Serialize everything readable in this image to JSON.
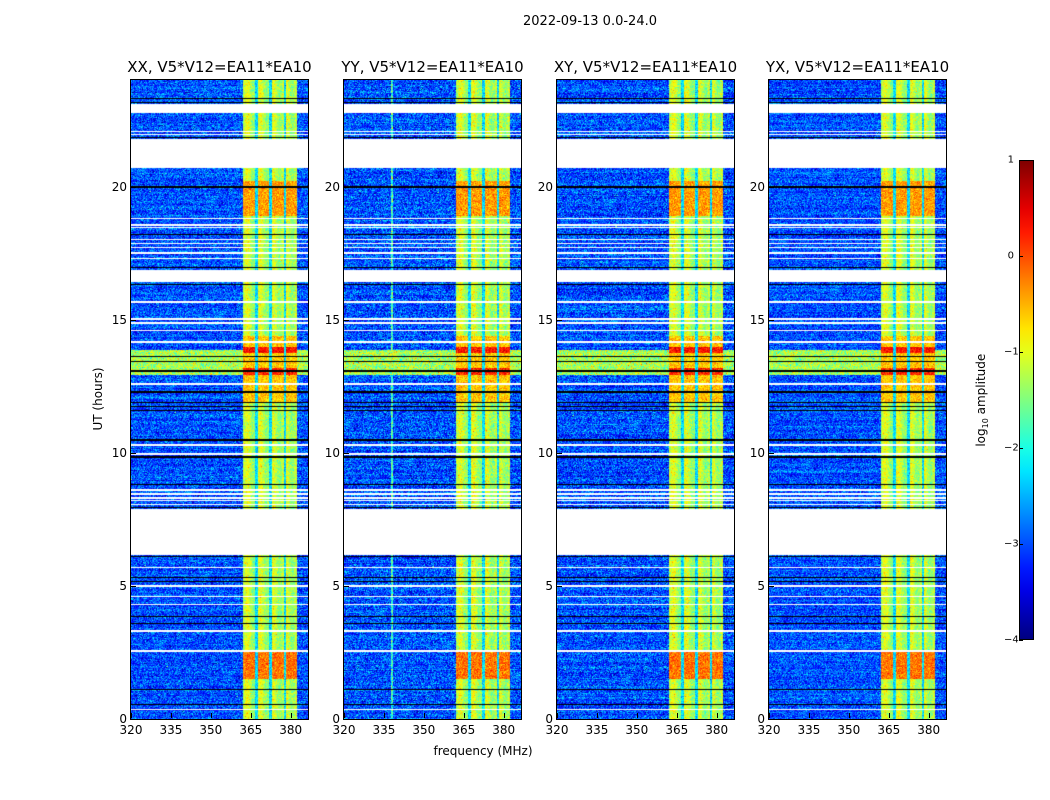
{
  "chart_data": {
    "type": "heatmap",
    "title": "2022-09-13 0.0-24.0",
    "xlabel": "frequency (MHz)",
    "ylabel": "UT (hours)",
    "xlim": [
      320,
      386.5
    ],
    "ylim": [
      0,
      24
    ],
    "xticks": [
      "320",
      "335",
      "350",
      "365",
      "380"
    ],
    "xtick_values": [
      320,
      335,
      350,
      365,
      380
    ],
    "yticks": [
      "0",
      "5",
      "10",
      "15",
      "20"
    ],
    "ytick_values": [
      0,
      5,
      10,
      15,
      20
    ],
    "panels": [
      {
        "title": "XX, V5*V12=EA11*EA10",
        "scale": 1.0,
        "vline_mhz": null
      },
      {
        "title": "YY, V5*V12=EA11*EA10",
        "scale": 1.1,
        "vline_mhz": 338
      },
      {
        "title": "XY, V5*V12=EA11*EA10",
        "scale": 1.05,
        "vline_mhz": null
      },
      {
        "title": "YX, V5*V12=EA11*EA10",
        "scale": 0.95,
        "vline_mhz": null
      }
    ],
    "colorbar": {
      "label_prefix": "log",
      "label_sub": "10",
      "label_suffix": " amplitude",
      "range": [
        -4,
        1
      ],
      "ticks": [
        "−4",
        "−3",
        "−2",
        "−1",
        "0",
        "1"
      ],
      "tick_values": [
        -4,
        -3,
        -2,
        -1,
        0,
        1
      ],
      "colormap": "jet"
    },
    "model": {
      "background_log_amp": -3.0,
      "noise_sd": 0.35,
      "rfi_band_mhz": [
        362,
        382.5
      ],
      "rfi_band_log_amp": -1.2,
      "rfi_gaps_mhz": [
        367.2,
        372.5,
        377.8
      ],
      "flagged_hours": [
        [
          22.75,
          23.1
        ],
        [
          20.7,
          21.8
        ],
        [
          16.4,
          16.85
        ],
        [
          6.15,
          7.9
        ]
      ],
      "flagged_lines_hours": [
        22.06,
        21.96,
        18.8,
        18.55,
        18.45,
        18.0,
        17.85,
        17.7,
        17.5,
        17.3,
        15.66,
        15.02,
        14.87,
        14.6,
        14.16,
        12.58,
        10.29,
        9.95,
        8.6,
        8.45,
        8.3,
        8.2,
        8.05,
        5.7,
        5.0,
        4.6,
        4.3,
        3.3,
        2.55,
        0.35
      ],
      "dark_lines_hours": [
        23.3,
        23.15,
        21.85,
        19.98,
        18.2,
        16.95,
        16.33,
        13.63,
        13.44,
        13.07,
        12.28,
        11.9,
        11.75,
        11.6,
        10.48,
        9.84,
        8.82,
        7.95,
        6.1,
        5.3,
        5.15,
        3.85,
        3.6,
        1.1,
        0.55
      ],
      "broadband_rfi_hours": [
        12.92,
        13.86
      ],
      "broadband_rfi_log_amp": -1.3,
      "hot_hours": [
        [
          13.74,
          13.97,
          0.3
        ],
        [
          12.92,
          13.18,
          0.2
        ],
        [
          1.5,
          2.5,
          -0.2
        ],
        [
          18.9,
          20.2,
          -0.4
        ]
      ],
      "warm_hours": [
        [
          11.87,
          14.4,
          -0.6
        ]
      ]
    }
  }
}
